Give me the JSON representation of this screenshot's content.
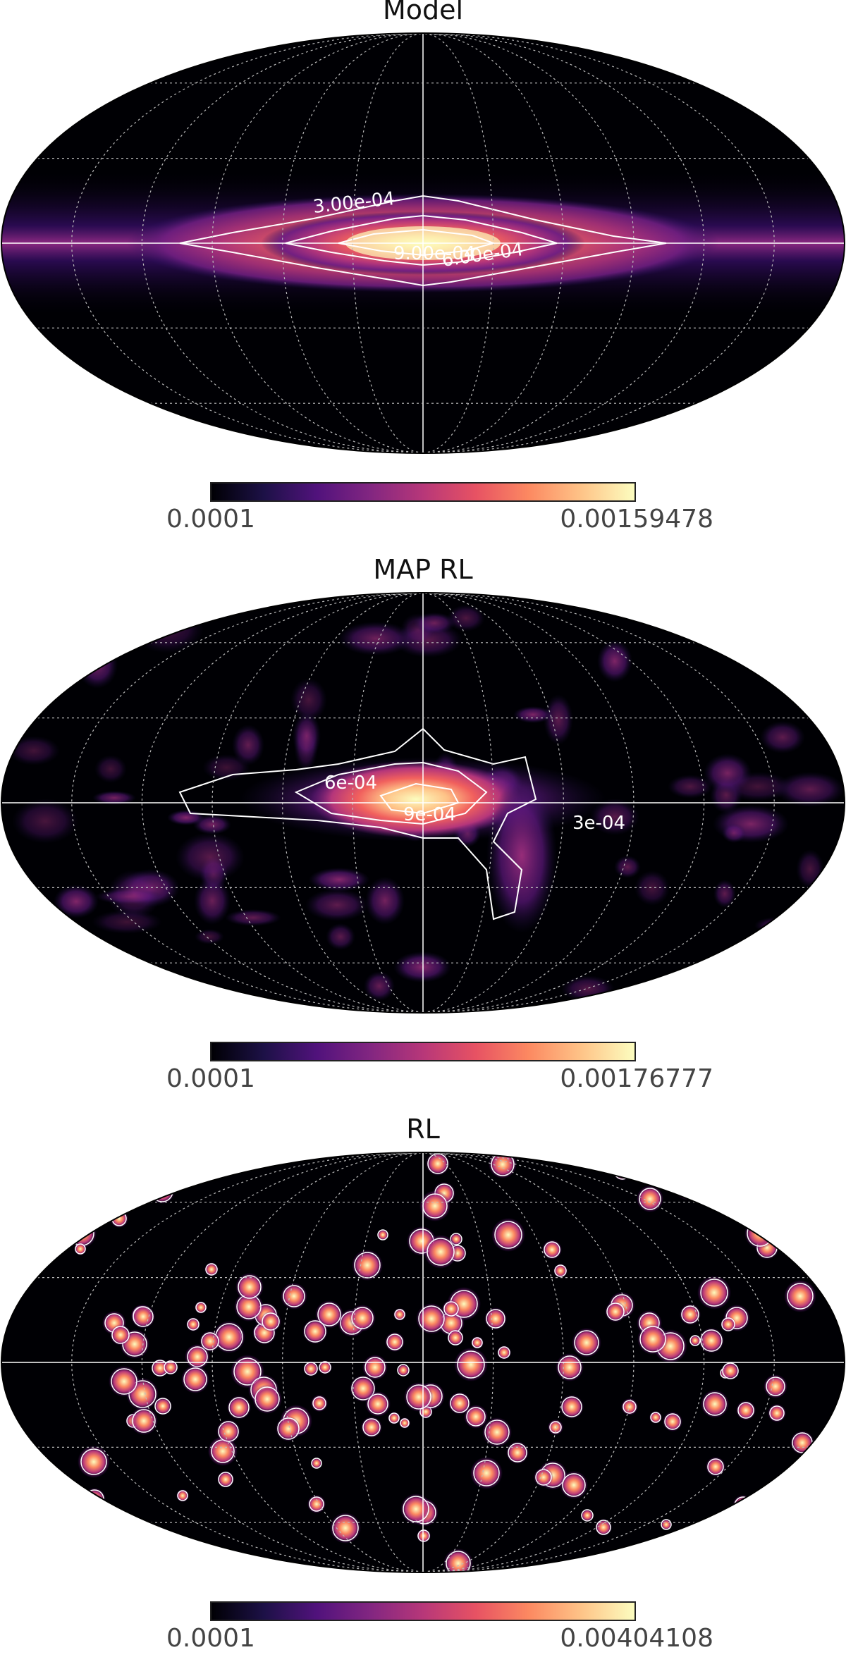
{
  "chart_data": [
    {
      "type": "heatmap",
      "projection": "mollweide",
      "title": "Model",
      "colormap": "magma",
      "colorbar": {
        "min_label": "0.0001",
        "max_label": "0.00159478",
        "vmin": 0.0001,
        "vmax": 0.00159478
      },
      "contours": [
        {
          "level": 0.0003,
          "label": "3.00e-04"
        },
        {
          "level": 0.0006,
          "label": "6.00e-04"
        },
        {
          "level": 0.0009,
          "label": "9.00e-04"
        }
      ],
      "grid": true
    },
    {
      "type": "heatmap",
      "projection": "mollweide",
      "title": "MAP RL",
      "colormap": "magma",
      "colorbar": {
        "min_label": "0.0001",
        "max_label": "0.00176777",
        "vmin": 0.0001,
        "vmax": 0.00176777
      },
      "contours": [
        {
          "level": 0.0003,
          "label": "3e-04"
        },
        {
          "level": 0.0006,
          "label": "6e-04"
        },
        {
          "level": 0.0009,
          "label": "9e-04"
        }
      ],
      "grid": true
    },
    {
      "type": "heatmap",
      "projection": "mollweide",
      "title": "RL",
      "colormap": "magma",
      "colorbar": {
        "min_label": "0.0001",
        "max_label": "0.00404108",
        "vmin": 0.0001,
        "vmax": 0.00404108
      },
      "contours": [],
      "grid": true
    }
  ]
}
